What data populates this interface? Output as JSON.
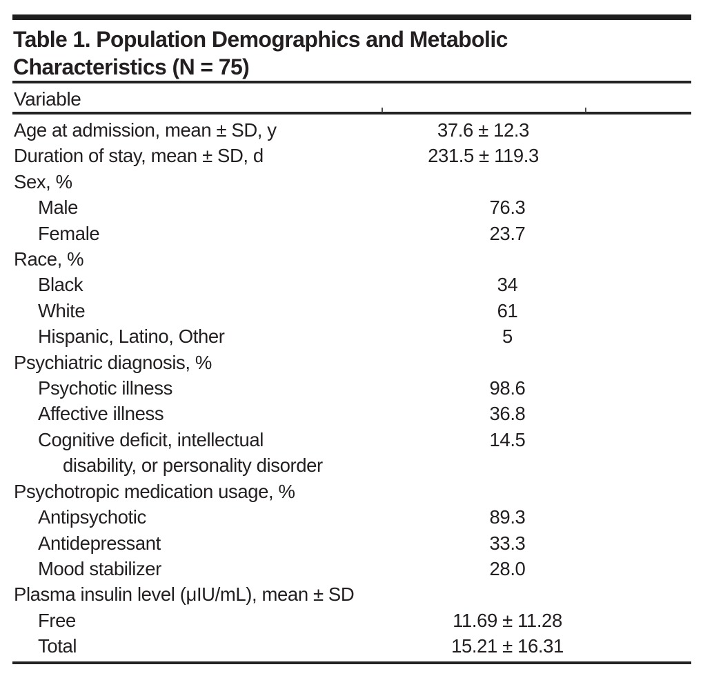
{
  "colors": {
    "ink": "#231f20",
    "rule": "#232323",
    "background": "#ffffff"
  },
  "table": {
    "title_line1": "Table 1. Population Demographics and Metabolic",
    "title_line2": "Characteristics (N = 75)",
    "column_header": "Variable",
    "rows": [
      {
        "indent": 0,
        "label": "Age at admission, mean ± SD, y",
        "value": "37.6 ± 12.3"
      },
      {
        "indent": 0,
        "label": "Duration of stay, mean ± SD, d",
        "value": "231.5 ± 119.3"
      },
      {
        "indent": 0,
        "label": "Sex, %",
        "value": ""
      },
      {
        "indent": 1,
        "label": "Male",
        "value": "76.3"
      },
      {
        "indent": 1,
        "label": "Female",
        "value": "23.7"
      },
      {
        "indent": 0,
        "label": "Race, %",
        "value": ""
      },
      {
        "indent": 1,
        "label": "Black",
        "value": "34"
      },
      {
        "indent": 1,
        "label": "White",
        "value": "61"
      },
      {
        "indent": 1,
        "label": "Hispanic, Latino, Other",
        "value": "5"
      },
      {
        "indent": 0,
        "label": "Psychiatric diagnosis, %",
        "value": ""
      },
      {
        "indent": 1,
        "label": "Psychotic illness",
        "value": "98.6"
      },
      {
        "indent": 1,
        "label": "Affective illness",
        "value": "36.8"
      },
      {
        "indent": 1,
        "label": "Cognitive deficit, intellectual",
        "label2": "disability, or personality disorder",
        "value": "14.5"
      },
      {
        "indent": 0,
        "label": "Psychotropic medication usage, %",
        "value": ""
      },
      {
        "indent": 1,
        "label": "Antipsychotic",
        "value": "89.3"
      },
      {
        "indent": 1,
        "label": "Antidepressant",
        "value": "33.3"
      },
      {
        "indent": 1,
        "label": "Mood stabilizer",
        "value": "28.0"
      },
      {
        "indent": 0,
        "label": "Plasma insulin level (μIU/mL), mean ± SD",
        "value": ""
      },
      {
        "indent": 1,
        "label": "Free",
        "value": "11.69 ± 11.28"
      },
      {
        "indent": 1,
        "label": "Total",
        "value": "15.21 ± 16.31"
      }
    ]
  }
}
